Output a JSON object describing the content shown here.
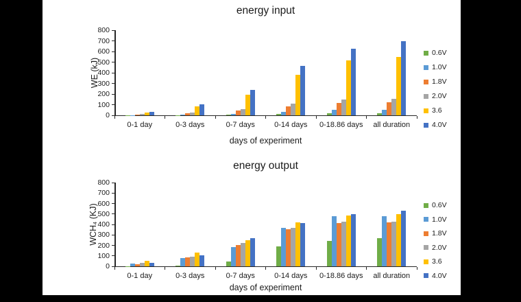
{
  "page": {
    "background_color": "#000000",
    "canvas_color": "#ffffff",
    "axis_color": "#262626",
    "text_color": "#1a1a1a"
  },
  "legend": {
    "position": "right",
    "entries": [
      {
        "label": "0.6V",
        "color": "#70AD47",
        "marker": "square-icon"
      },
      {
        "label": "1.0V",
        "color": "#5B9BD5",
        "marker": "square-icon"
      },
      {
        "label": "1.8V",
        "color": "#ED7D31",
        "marker": "square-icon"
      },
      {
        "label": "2.0V",
        "color": "#A5A5A5",
        "marker": "square-icon"
      },
      {
        "label": "3.6",
        "color": "#FFC000",
        "marker": "square-icon"
      },
      {
        "label": "4.0V",
        "color": "#4472C4",
        "marker": "square-icon"
      }
    ]
  },
  "chart_data": [
    {
      "type": "bar",
      "title": "energy input",
      "xlabel": "days of experiment",
      "ylabel": "WE (kJ)",
      "ylim": [
        0,
        800
      ],
      "ytick_step": 100,
      "grid": false,
      "legend_position": "right",
      "categories": [
        "0-1 day",
        "0-3 days",
        "0-7 days",
        "0-14 days",
        "0-18.86 days",
        "all duration"
      ],
      "series": [
        {
          "name": "0.6V",
          "color": "#70AD47",
          "values": [
            1,
            3,
            6,
            13,
            20,
            22
          ]
        },
        {
          "name": "1.0V",
          "color": "#5B9BD5",
          "values": [
            3,
            8,
            14,
            35,
            50,
            50
          ]
        },
        {
          "name": "1.8V",
          "color": "#ED7D31",
          "values": [
            8,
            22,
            45,
            86,
            115,
            120
          ]
        },
        {
          "name": "2.0V",
          "color": "#A5A5A5",
          "values": [
            12,
            28,
            57,
            110,
            148,
            157
          ]
        },
        {
          "name": "3.6",
          "color": "#FFC000",
          "values": [
            28,
            82,
            192,
            382,
            518,
            547
          ]
        },
        {
          "name": "4.0V",
          "color": "#4472C4",
          "values": [
            34,
            103,
            236,
            465,
            628,
            695
          ]
        }
      ]
    },
    {
      "type": "bar",
      "title": "energy output",
      "xlabel": "days of experiment",
      "ylabel": "WCH₄ (KJ)",
      "ylim": [
        0,
        800
      ],
      "ytick_step": 100,
      "grid": false,
      "legend_position": "right",
      "categories": [
        "0-1 day",
        "0-3 days",
        "0-7 days",
        "0-14 days",
        "0-18.86 days",
        "all duration"
      ],
      "series": [
        {
          "name": "0.6V",
          "color": "#70AD47",
          "values": [
            2,
            5,
            45,
            190,
            243,
            272
          ]
        },
        {
          "name": "1.0V",
          "color": "#5B9BD5",
          "values": [
            25,
            80,
            185,
            370,
            480,
            480
          ]
        },
        {
          "name": "1.8V",
          "color": "#ED7D31",
          "values": [
            22,
            88,
            205,
            352,
            415,
            420
          ]
        },
        {
          "name": "2.0V",
          "color": "#A5A5A5",
          "values": [
            30,
            90,
            222,
            368,
            425,
            424
          ]
        },
        {
          "name": "3.6",
          "color": "#FFC000",
          "values": [
            55,
            128,
            250,
            420,
            487,
            500
          ]
        },
        {
          "name": "4.0V",
          "color": "#4472C4",
          "values": [
            35,
            108,
            270,
            410,
            500,
            532
          ]
        }
      ]
    }
  ]
}
